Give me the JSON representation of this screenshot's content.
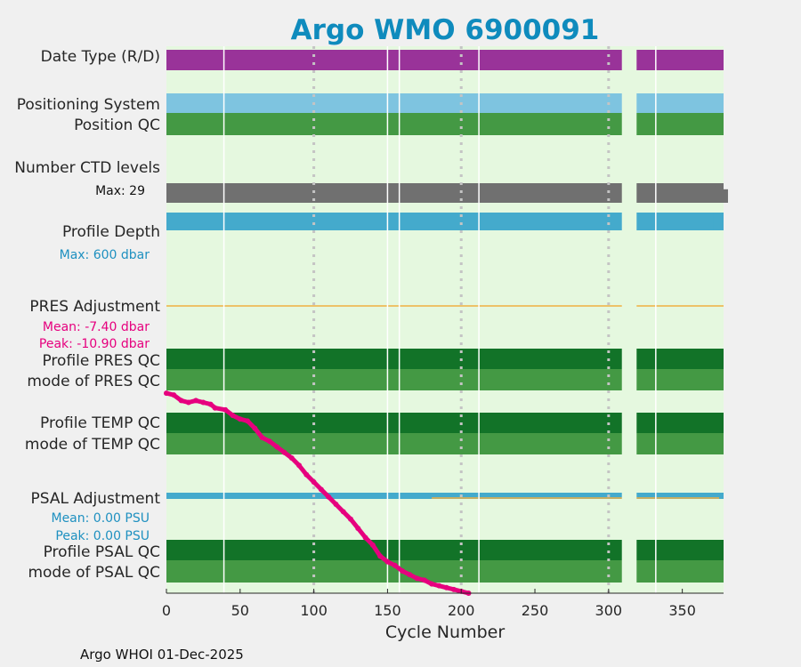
{
  "chart_data": {
    "type": "bar",
    "title": "Argo WMO 6900091",
    "xlabel": "Cycle Number",
    "xlim": [
      0,
      378
    ],
    "xticks": [
      "0",
      "50",
      "100",
      "150",
      "200",
      "250",
      "300",
      "350"
    ],
    "xtick_values": [
      0,
      50,
      100,
      150,
      200,
      250,
      300,
      350
    ],
    "grid_x": [
      100,
      200,
      300
    ],
    "footer": "Argo WHOI 01-Dec-2025",
    "gaps": [
      [
        309,
        319
      ]
    ],
    "separators": [
      39,
      150,
      158,
      212,
      332
    ],
    "row_labels": {
      "date_type": "Date Type (R/D)",
      "positioning": "Positioning System",
      "position_qc": "Position QC",
      "ctd_levels": "Number CTD levels",
      "ctd_max": "Max: 29",
      "profile_depth": "Profile Depth",
      "depth_max": "Max:  600 dbar",
      "pres_adj": "PRES Adjustment",
      "pres_mean": "Mean: -7.40 dbar",
      "pres_peak": "Peak: -10.90 dbar",
      "profile_pres_qc": "Profile PRES QC",
      "mode_pres_qc": "mode of PRES QC",
      "profile_temp_qc": "Profile TEMP QC",
      "mode_temp_qc": "mode of TEMP QC",
      "psal_adj": "PSAL Adjustment",
      "psal_mean": "Mean: 0.00 PSU",
      "psal_peak": "Peak: 0.00 PSU",
      "profile_psal_qc": "Profile PSAL QC",
      "mode_psal_qc": "mode of PSAL QC"
    },
    "colors": {
      "background": "#e5f8df",
      "figure": "#f0f0f0",
      "title": "#0f8bbd",
      "date_type": "#993399",
      "positioning": "#7ec4e0",
      "qc_good_dark": "#127328",
      "qc_good_light": "#449944",
      "ctd": "#707070",
      "depth": "#44aacc",
      "adjustment_zero": "#f0b040",
      "psal_adj": "#44aacc",
      "pres_curve": "#e6007e",
      "mean_text": "#e6007e",
      "psal_text": "#1e90c0"
    },
    "ctd_levels_tail": [
      [
        360,
        29
      ],
      [
        363,
        28
      ],
      [
        366,
        27
      ],
      [
        369,
        26
      ],
      [
        372,
        24
      ],
      [
        375,
        22
      ],
      [
        378,
        20
      ]
    ],
    "depth_tail": [
      [
        368,
        600
      ],
      [
        371,
        560
      ],
      [
        374,
        500
      ],
      [
        377,
        440
      ]
    ],
    "pres_adjustment": [
      [
        0,
        -0.1
      ],
      [
        5,
        -0.2
      ],
      [
        10,
        -0.5
      ],
      [
        15,
        -0.6
      ],
      [
        20,
        -0.5
      ],
      [
        25,
        -0.6
      ],
      [
        30,
        -0.7
      ],
      [
        33,
        -0.9
      ],
      [
        40,
        -1.0
      ],
      [
        45,
        -1.3
      ],
      [
        50,
        -1.5
      ],
      [
        55,
        -1.6
      ],
      [
        60,
        -2.0
      ],
      [
        65,
        -2.5
      ],
      [
        70,
        -2.7
      ],
      [
        75,
        -3.0
      ],
      [
        80,
        -3.3
      ],
      [
        85,
        -3.6
      ],
      [
        90,
        -4.0
      ],
      [
        95,
        -4.5
      ],
      [
        100,
        -4.9
      ],
      [
        105,
        -5.3
      ],
      [
        110,
        -5.7
      ],
      [
        115,
        -6.1
      ],
      [
        120,
        -6.5
      ],
      [
        125,
        -6.9
      ],
      [
        130,
        -7.4
      ],
      [
        135,
        -7.9
      ],
      [
        140,
        -8.3
      ],
      [
        145,
        -8.9
      ],
      [
        150,
        -9.2
      ],
      [
        155,
        -9.4
      ],
      [
        160,
        -9.7
      ],
      [
        165,
        -9.9
      ],
      [
        170,
        -10.1
      ],
      [
        175,
        -10.2
      ],
      [
        180,
        -10.4
      ],
      [
        185,
        -10.5
      ],
      [
        190,
        -10.6
      ],
      [
        195,
        -10.7
      ],
      [
        200,
        -10.8
      ],
      [
        205,
        -10.9
      ]
    ]
  }
}
